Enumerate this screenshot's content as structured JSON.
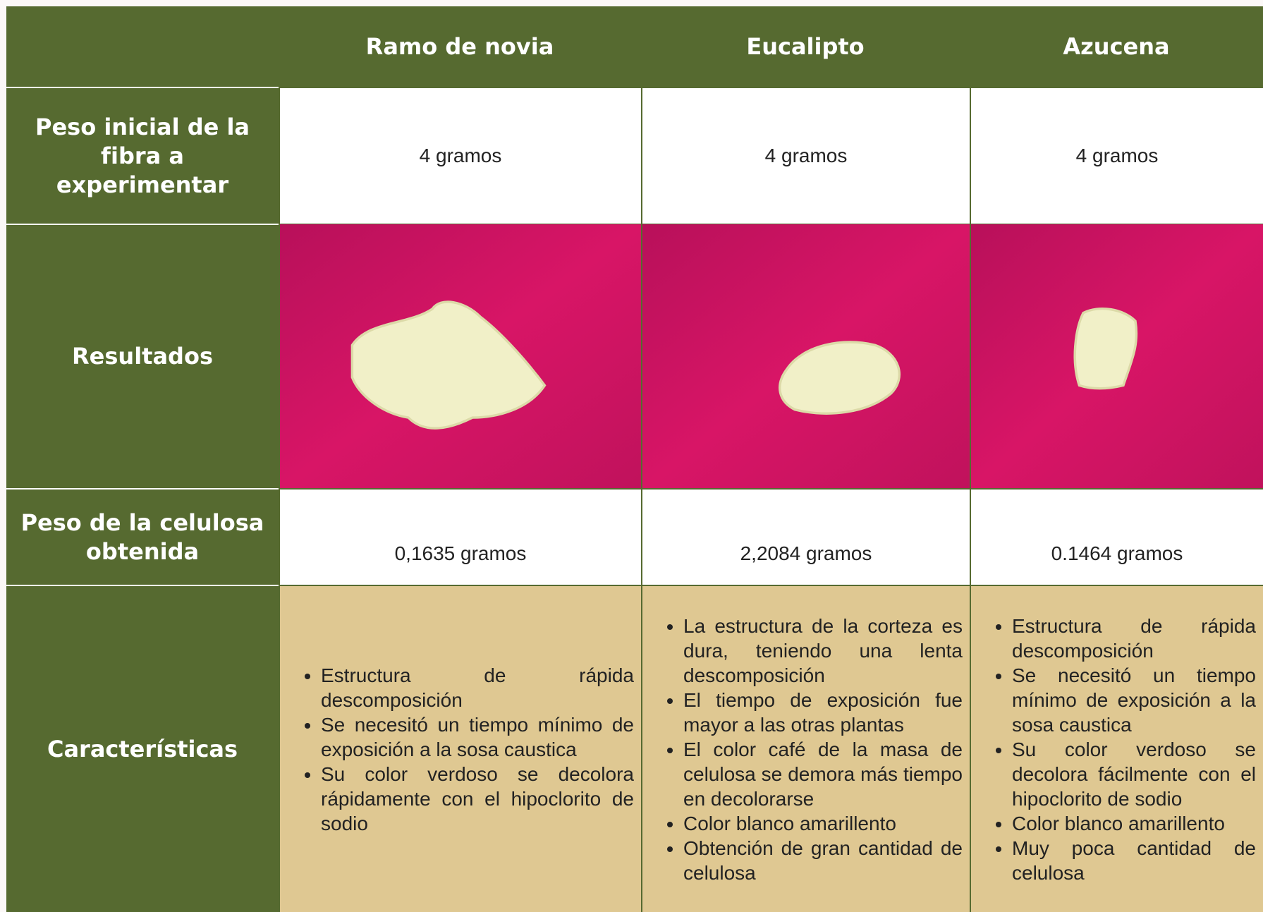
{
  "table": {
    "header": [
      "Ramo de novia",
      "Eucalipto",
      "Azucena"
    ],
    "rows": [
      {
        "label": "Peso inicial de la fibra a experimentar",
        "cells": [
          "4 gramos",
          "4 gramos",
          "4 gramos"
        ]
      },
      {
        "label": "Resultados"
      },
      {
        "label": "Peso de la celulosa obtenida",
        "cells": [
          "0,1635 gramos",
          "2,2084 gramos",
          "0.1464 gramos"
        ]
      },
      {
        "label": "Características",
        "cells": [
          [
            "Estructura de rápida descomposición",
            "Se necesitó un tiempo mínimo de exposición a la sosa caustica",
            "Su color verdoso se decolora rápidamente con el hipoclorito de sodio"
          ],
          [
            "La estructura de la corteza es dura, teniendo una lenta descomposición",
            "El tiempo de exposición fue mayor a las otras plantas",
            "El color café de la masa de celulosa se demora más tiempo en decolorarse",
            "Color blanco amarillento",
            "Obtención de gran cantidad de celulosa"
          ],
          [
            "Estructura de rápida descomposición",
            "Se necesitó un tiempo mínimo de exposición a la sosa caustica",
            "Su color verdoso se decolora fácilmente con el hipoclorito de sodio",
            "Color blanco amarillento",
            "Muy poca cantidad de celulosa"
          ]
        ]
      }
    ]
  }
}
